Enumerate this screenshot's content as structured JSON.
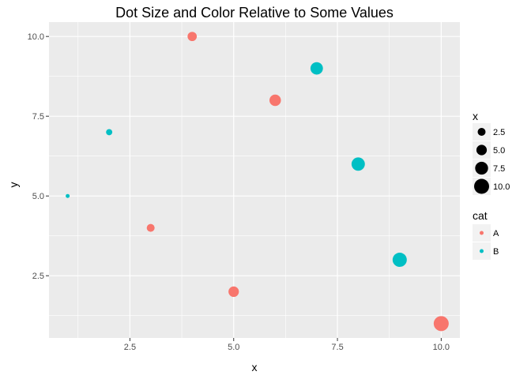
{
  "chart_data": {
    "type": "scatter",
    "title": "Dot Size and Color Relative to Some Values",
    "xlabel": "x",
    "ylabel": "y",
    "xlim": [
      0.55,
      10.45
    ],
    "ylim": [
      0.55,
      10.45
    ],
    "grid": true,
    "x_ticks": [
      2.5,
      5.0,
      7.5,
      10.0
    ],
    "x_tick_labels": [
      "2.5",
      "5.0",
      "7.5",
      "10.0"
    ],
    "y_ticks": [
      2.5,
      5.0,
      7.5,
      10.0
    ],
    "y_tick_labels": [
      "2.5",
      "5.0",
      "7.5",
      "10.0"
    ],
    "points": [
      {
        "x": 1,
        "y": 5,
        "cat": "B"
      },
      {
        "x": 2,
        "y": 7,
        "cat": "B"
      },
      {
        "x": 3,
        "y": 4,
        "cat": "A"
      },
      {
        "x": 4,
        "y": 10,
        "cat": "A"
      },
      {
        "x": 5,
        "y": 2,
        "cat": "A"
      },
      {
        "x": 6,
        "y": 8,
        "cat": "A"
      },
      {
        "x": 7,
        "y": 9,
        "cat": "B"
      },
      {
        "x": 8,
        "y": 6,
        "cat": "B"
      },
      {
        "x": 9,
        "y": 3,
        "cat": "B"
      },
      {
        "x": 10,
        "y": 1,
        "cat": "A"
      }
    ],
    "size_legend": {
      "title": "x",
      "values": [
        2.5,
        5.0,
        7.5,
        10.0
      ],
      "labels": [
        "2.5",
        "5.0",
        "7.5",
        "10.0"
      ]
    },
    "color_legend": {
      "title": "cat",
      "labels": [
        "A",
        "B"
      ],
      "colors": [
        "#F8766D",
        "#00BFC4"
      ]
    },
    "legend_position": "right"
  }
}
